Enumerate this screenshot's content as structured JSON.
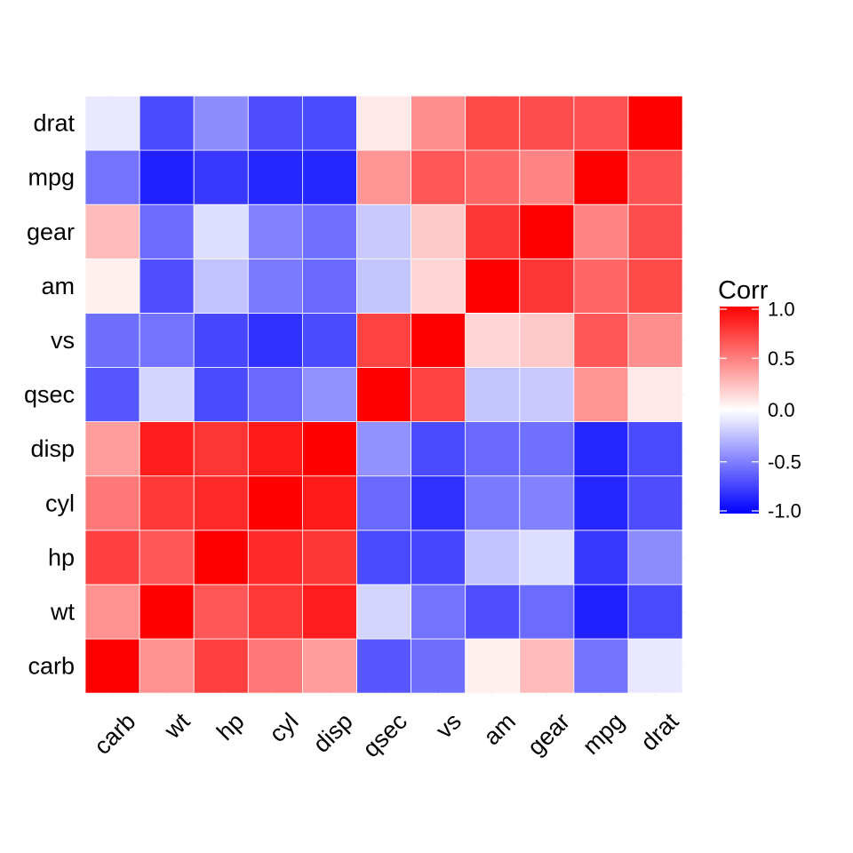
{
  "chart_data": {
    "type": "heatmap",
    "x_categories": [
      "carb",
      "wt",
      "hp",
      "cyl",
      "disp",
      "qsec",
      "vs",
      "am",
      "gear",
      "mpg",
      "drat"
    ],
    "y_categories": [
      "carb",
      "wt",
      "hp",
      "cyl",
      "disp",
      "qsec",
      "vs",
      "am",
      "gear",
      "mpg",
      "drat"
    ],
    "values": [
      [
        1.0,
        0.43,
        0.75,
        0.53,
        0.39,
        -0.66,
        -0.57,
        0.06,
        0.27,
        -0.55,
        -0.09
      ],
      [
        0.43,
        1.0,
        0.66,
        0.78,
        0.89,
        -0.17,
        -0.55,
        -0.69,
        -0.58,
        -0.87,
        -0.71
      ],
      [
        0.75,
        0.66,
        1.0,
        0.83,
        0.79,
        -0.71,
        -0.72,
        -0.24,
        -0.13,
        -0.78,
        -0.45
      ],
      [
        0.53,
        0.78,
        0.83,
        1.0,
        0.9,
        -0.59,
        -0.81,
        -0.52,
        -0.49,
        -0.85,
        -0.7
      ],
      [
        0.39,
        0.89,
        0.79,
        0.9,
        1.0,
        -0.43,
        -0.71,
        -0.59,
        -0.56,
        -0.85,
        -0.71
      ],
      [
        -0.66,
        -0.17,
        -0.71,
        -0.59,
        -0.43,
        1.0,
        0.74,
        -0.23,
        -0.21,
        0.42,
        0.09
      ],
      [
        -0.57,
        -0.55,
        -0.72,
        -0.81,
        -0.71,
        0.74,
        1.0,
        0.17,
        0.21,
        0.66,
        0.44
      ],
      [
        0.06,
        -0.69,
        -0.24,
        -0.52,
        -0.59,
        -0.23,
        0.17,
        1.0,
        0.79,
        0.6,
        0.71
      ],
      [
        0.27,
        -0.58,
        -0.13,
        -0.49,
        -0.56,
        -0.21,
        0.21,
        0.79,
        1.0,
        0.48,
        0.7
      ],
      [
        -0.55,
        -0.87,
        -0.78,
        -0.85,
        -0.85,
        0.42,
        0.66,
        0.6,
        0.48,
        1.0,
        0.68
      ],
      [
        -0.09,
        -0.71,
        -0.45,
        -0.7,
        -0.71,
        0.09,
        0.44,
        0.71,
        0.7,
        0.68,
        1.0
      ]
    ],
    "xlabel": "",
    "ylabel": "",
    "legend": {
      "title": "Corr",
      "placement": "right",
      "range": [
        -1.0,
        1.0
      ],
      "ticks": [
        1.0,
        0.5,
        0.0,
        -0.5,
        -1.0
      ],
      "tick_labels": [
        "1.0",
        "0.5",
        "0.0",
        "-0.5",
        "-1.0"
      ]
    },
    "colors": {
      "low": "#0000ff",
      "mid": "#ffffff",
      "high": "#ff0000"
    },
    "grid": true
  }
}
